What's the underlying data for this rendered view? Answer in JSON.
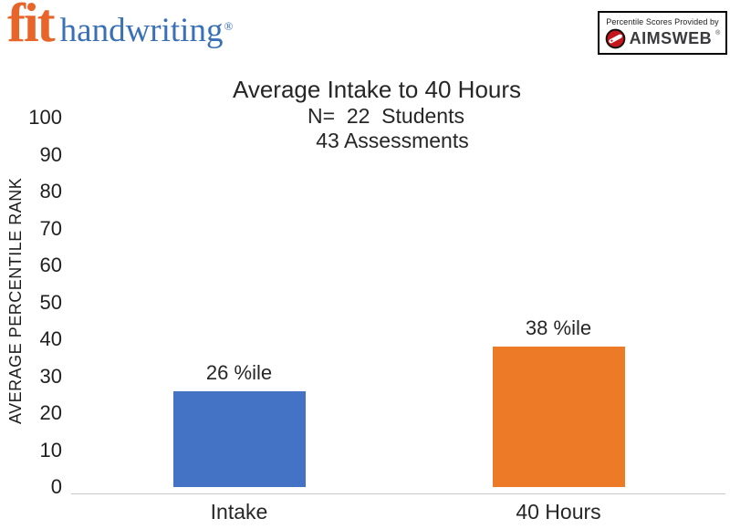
{
  "header": {
    "brand": {
      "word1": "fit",
      "word2": "handwriting",
      "registered": "®",
      "word1_color": "#E8652A",
      "word2_color": "#3A70B6"
    },
    "provider": {
      "caption": "Percentile Scores Provided by",
      "brand": "AIMSWEB",
      "mark": "®",
      "icon": "pen-circle-icon",
      "icon_color": "#C4161C"
    }
  },
  "chart_data": {
    "type": "bar",
    "title": "Average Intake to 40 Hours",
    "subtitle_lines": [
      "N=  22  Students",
      "43 Assessments"
    ],
    "ylabel": "AVERAGE PERCENTILE RANK",
    "xlabel": "",
    "categories": [
      "Intake",
      "40 Hours"
    ],
    "values": [
      26,
      38
    ],
    "value_labels": [
      "26 %ile",
      "38 %ile"
    ],
    "bar_colors": [
      "#4472C4",
      "#ED7A27"
    ],
    "ylim": [
      0,
      100
    ],
    "ytick_step": 10,
    "grid": false,
    "legend": false,
    "axis_line_color": "#C8C8C8",
    "background_color": "#FFFFFF"
  }
}
